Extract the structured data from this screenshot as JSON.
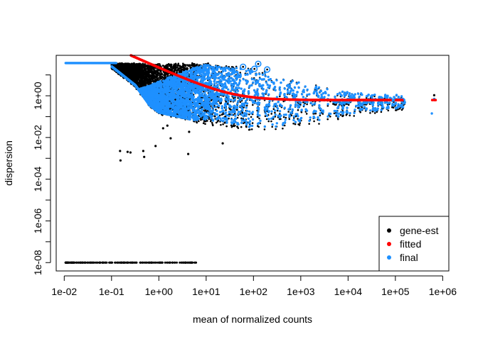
{
  "chart_data": {
    "type": "scatter",
    "title": "",
    "xlabel": "mean of normalized counts",
    "ylabel": "dispersion",
    "xscale": "log10",
    "yscale": "log10",
    "xlim_log10": [
      -2.17,
      6.13
    ],
    "ylim_log10": [
      -8.4,
      1.94
    ],
    "x_ticks": [
      {
        "exp": -2,
        "label": "1e-02"
      },
      {
        "exp": -1,
        "label": "1e-01"
      },
      {
        "exp": 0,
        "label": "1e+00"
      },
      {
        "exp": 1,
        "label": "1e+01"
      },
      {
        "exp": 2,
        "label": "1e+02"
      },
      {
        "exp": 3,
        "label": "1e+03"
      },
      {
        "exp": 4,
        "label": "1e+04"
      },
      {
        "exp": 5,
        "label": "1e+05"
      },
      {
        "exp": 6,
        "label": "1e+06"
      }
    ],
    "y_ticks": [
      {
        "exp": 1,
        "label": ""
      },
      {
        "exp": 0,
        "label": "1e+00"
      },
      {
        "exp": -1,
        "label": ""
      },
      {
        "exp": -2,
        "label": "1e-02"
      },
      {
        "exp": -3,
        "label": ""
      },
      {
        "exp": -4,
        "label": "1e-04"
      },
      {
        "exp": -5,
        "label": ""
      },
      {
        "exp": -6,
        "label": "1e-06"
      },
      {
        "exp": -7,
        "label": ""
      },
      {
        "exp": -8,
        "label": "1e-08"
      }
    ],
    "legend": {
      "position": "bottom-right",
      "entries": [
        {
          "label": "gene-est",
          "color": "#000000"
        },
        {
          "label": "fitted",
          "color": "#FF0000"
        },
        {
          "label": "final",
          "color": "#1E90FF"
        }
      ]
    },
    "fitted_curve": {
      "formula": "asymptDisp + extraPois / mean",
      "asymptDisp": 0.62,
      "extraPois": 22,
      "mean_log10_range": [
        -0.6,
        5.15
      ],
      "extra_points_log10_mean": [
        5.78,
        5.82,
        5.85
      ]
    },
    "dispersion_cap_log10": 1.57,
    "cloud_envelope": {
      "log10_mean": [
        -1.2,
        -1.0,
        -0.5,
        -0.2,
        0,
        0.5,
        1,
        1.5,
        2,
        2.5,
        3,
        3.5,
        4,
        4.5,
        5.2
      ],
      "lower_log10_disp": [
        1.57,
        1.4,
        0.5,
        -0.45,
        -0.8,
        -1.05,
        -1.3,
        -1.5,
        -1.65,
        -1.6,
        -1.4,
        -1.2,
        -1.0,
        -0.8,
        -0.6
      ],
      "upper_log10_disp": [
        1.57,
        1.57,
        1.57,
        1.57,
        1.57,
        1.57,
        1.57,
        1.45,
        1.4,
        1.0,
        0.7,
        0.4,
        0.2,
        0.1,
        0.05
      ]
    },
    "gene_est_outliers": [
      [
        -0.82,
        -2.65
      ],
      [
        -0.81,
        -3.1
      ],
      [
        -0.66,
        -2.69
      ],
      [
        -0.6,
        -2.72
      ],
      [
        -0.33,
        -2.65
      ],
      [
        -0.31,
        -2.93
      ],
      [
        -0.07,
        -2.41
      ],
      [
        0.25,
        -2.04
      ],
      [
        0.62,
        -2.79
      ],
      [
        0.64,
        -1.73
      ],
      [
        1.35,
        -2.28
      ],
      [
        0.09,
        -1.56
      ],
      [
        0.18,
        -1.43
      ],
      [
        5.82,
        0.03
      ]
    ],
    "final_extra_points": [
      [
        5.77,
        -0.85
      ],
      [
        5.82,
        -0.15
      ]
    ],
    "dispersion_outliers": [
      [
        1.78,
        1.39
      ],
      [
        2.02,
        1.29
      ],
      [
        2.1,
        1.53
      ],
      [
        2.29,
        1.26
      ]
    ],
    "zero_dispersion_row": {
      "log10_disp": -8,
      "log10_mean_range": [
        -1.97,
        0.8
      ]
    }
  }
}
